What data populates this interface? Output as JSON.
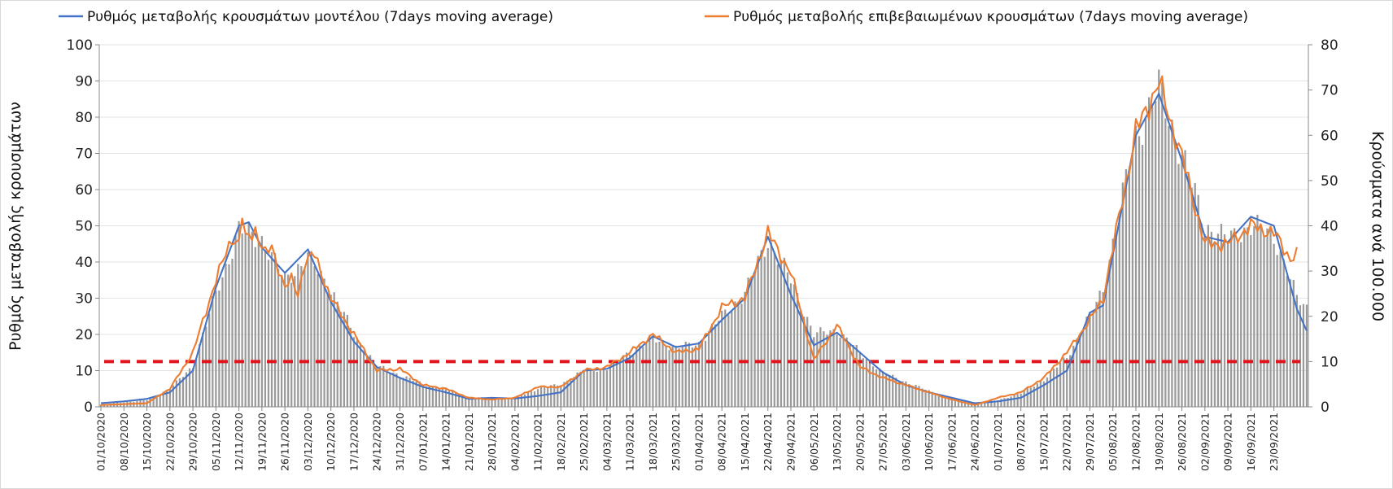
{
  "chart_data": {
    "type": "line",
    "title": "",
    "ylabel_left": "Ρυθμός μεταβολής κρουσμάτων",
    "ylabel_right": "Κρούσματα ανά 100.000",
    "ylim_left": [
      0,
      100
    ],
    "ylim_right": [
      0,
      80
    ],
    "yticks_left": [
      "0",
      "10",
      "20",
      "30",
      "40",
      "50",
      "60",
      "70",
      "80",
      "90",
      "100"
    ],
    "yticks_right": [
      "0",
      "10",
      "20",
      "30",
      "40",
      "50",
      "60",
      "70",
      "80"
    ],
    "grid": true,
    "legend_position": "top",
    "x_labels": [
      "01/10/2020",
      "08/10/2020",
      "15/10/2020",
      "22/10/2020",
      "29/10/2020",
      "05/11/2020",
      "12/11/2020",
      "19/11/2020",
      "26/11/2020",
      "03/12/2020",
      "10/12/2020",
      "17/12/2020",
      "24/12/2020",
      "31/12/2020",
      "07/01/2021",
      "14/01/2021",
      "21/01/2021",
      "28/01/2021",
      "04/02/2021",
      "11/02/2021",
      "18/02/2021",
      "25/02/2021",
      "04/03/2021",
      "11/03/2021",
      "18/03/2021",
      "25/03/2021",
      "01/04/2021",
      "08/04/2021",
      "15/04/2021",
      "22/04/2021",
      "29/04/2021",
      "06/05/2021",
      "13/05/2021",
      "20/05/2021",
      "27/05/2021",
      "03/06/2021",
      "10/06/2021",
      "17/06/2021",
      "24/06/2021",
      "01/07/2021",
      "08/07/2021",
      "15/07/2021",
      "22/07/2021",
      "29/07/2021",
      "05/08/2021",
      "12/08/2021",
      "19/08/2021",
      "26/08/2021",
      "02/09/2021",
      "09/09/2021",
      "16/09/2021",
      "23/09/2021"
    ],
    "threshold": {
      "axis": "right",
      "value": 10,
      "color": "#e0161c",
      "style": "dashed"
    },
    "series": [
      {
        "name": "Ρυθμός μεταβολής κρουσμάτων μοντέλου (7days moving average)",
        "axis": "left",
        "kind": "line",
        "color": "#4472c4",
        "knots": [
          [
            0,
            1
          ],
          [
            7,
            1.5
          ],
          [
            14,
            2.2
          ],
          [
            21,
            4
          ],
          [
            28,
            10
          ],
          [
            35,
            33
          ],
          [
            42,
            50
          ],
          [
            45,
            51
          ],
          [
            49,
            44
          ],
          [
            56,
            37
          ],
          [
            63,
            43.5
          ],
          [
            70,
            29
          ],
          [
            77,
            18
          ],
          [
            84,
            11
          ],
          [
            91,
            8
          ],
          [
            98,
            5.5
          ],
          [
            105,
            4
          ],
          [
            112,
            2.2
          ],
          [
            119,
            2.5
          ],
          [
            126,
            2.3
          ],
          [
            133,
            3
          ],
          [
            140,
            4
          ],
          [
            147,
            10
          ],
          [
            154,
            10.5
          ],
          [
            161,
            13.5
          ],
          [
            168,
            19.5
          ],
          [
            175,
            16.5
          ],
          [
            182,
            17.5
          ],
          [
            189,
            24
          ],
          [
            196,
            30
          ],
          [
            203,
            47
          ],
          [
            210,
            31
          ],
          [
            217,
            17
          ],
          [
            224,
            20.5
          ],
          [
            231,
            15
          ],
          [
            238,
            9.5
          ],
          [
            245,
            6
          ],
          [
            252,
            4
          ],
          [
            259,
            2.5
          ],
          [
            266,
            1
          ],
          [
            273,
            1.5
          ],
          [
            280,
            2.5
          ],
          [
            287,
            6
          ],
          [
            294,
            10
          ],
          [
            301,
            26
          ],
          [
            305,
            28
          ],
          [
            315,
            75
          ],
          [
            322,
            86.5
          ],
          [
            329,
            68
          ],
          [
            336,
            47
          ],
          [
            343,
            45.5
          ],
          [
            350,
            52.5
          ],
          [
            357,
            50
          ],
          [
            364,
            27
          ],
          [
            367,
            21
          ]
        ]
      },
      {
        "name": "Ρυθμός μεταβολής επιβεβαιωμένων κρουσμάτων (7days moving average)",
        "axis": "left",
        "kind": "line",
        "color": "#ed7d31",
        "knots": [
          [
            0,
            0.5
          ],
          [
            14,
            1
          ],
          [
            21,
            5
          ],
          [
            28,
            15
          ],
          [
            35,
            35
          ],
          [
            40,
            47
          ],
          [
            42,
            45
          ],
          [
            43,
            53
          ],
          [
            44,
            46
          ],
          [
            47,
            49
          ],
          [
            50,
            42
          ],
          [
            52,
            44
          ],
          [
            56,
            33
          ],
          [
            58,
            35
          ],
          [
            60,
            31
          ],
          [
            62,
            40
          ],
          [
            65,
            42
          ],
          [
            70,
            30
          ],
          [
            77,
            20
          ],
          [
            84,
            10
          ],
          [
            91,
            10.5
          ],
          [
            98,
            6
          ],
          [
            105,
            5
          ],
          [
            112,
            2.5
          ],
          [
            119,
            2
          ],
          [
            126,
            2.5
          ],
          [
            133,
            5.5
          ],
          [
            140,
            5.5
          ],
          [
            147,
            10
          ],
          [
            154,
            11
          ],
          [
            161,
            15
          ],
          [
            168,
            20
          ],
          [
            175,
            15
          ],
          [
            182,
            16
          ],
          [
            189,
            27.5
          ],
          [
            196,
            30
          ],
          [
            203,
            48
          ],
          [
            210,
            37
          ],
          [
            217,
            13
          ],
          [
            224,
            22.5
          ],
          [
            231,
            11
          ],
          [
            238,
            8
          ],
          [
            245,
            6
          ],
          [
            252,
            4
          ],
          [
            259,
            2
          ],
          [
            266,
            0.5
          ],
          [
            273,
            2.5
          ],
          [
            280,
            4
          ],
          [
            287,
            8
          ],
          [
            294,
            15
          ],
          [
            301,
            24
          ],
          [
            305,
            30
          ],
          [
            315,
            76
          ],
          [
            322,
            89.5
          ],
          [
            329,
            69
          ],
          [
            336,
            45
          ],
          [
            343,
            45
          ],
          [
            350,
            50
          ],
          [
            357,
            48
          ],
          [
            362,
            41
          ],
          [
            364,
            42
          ]
        ]
      },
      {
        "name": "Κρούσματα ανά 100.000",
        "axis": "right",
        "kind": "bar",
        "color": "#9a9a9a",
        "knots": [
          [
            0,
            0.5
          ],
          [
            7,
            1
          ],
          [
            14,
            1.5
          ],
          [
            21,
            4
          ],
          [
            28,
            9
          ],
          [
            35,
            25
          ],
          [
            42,
            39
          ],
          [
            49,
            37
          ],
          [
            56,
            28
          ],
          [
            63,
            33
          ],
          [
            70,
            26
          ],
          [
            77,
            16
          ],
          [
            84,
            9
          ],
          [
            91,
            7
          ],
          [
            98,
            5
          ],
          [
            105,
            4
          ],
          [
            112,
            2
          ],
          [
            119,
            2
          ],
          [
            126,
            2
          ],
          [
            133,
            4
          ],
          [
            140,
            5
          ],
          [
            147,
            8
          ],
          [
            154,
            8.5
          ],
          [
            161,
            12
          ],
          [
            168,
            15
          ],
          [
            175,
            13
          ],
          [
            182,
            14
          ],
          [
            189,
            20
          ],
          [
            196,
            25
          ],
          [
            203,
            37
          ],
          [
            210,
            28
          ],
          [
            217,
            16
          ],
          [
            224,
            17
          ],
          [
            231,
            12
          ],
          [
            238,
            7.5
          ],
          [
            245,
            5.5
          ],
          [
            252,
            3.5
          ],
          [
            259,
            2
          ],
          [
            266,
            0.8
          ],
          [
            273,
            1.5
          ],
          [
            280,
            3
          ],
          [
            287,
            6
          ],
          [
            294,
            11
          ],
          [
            301,
            20
          ],
          [
            305,
            26
          ],
          [
            315,
            60
          ],
          [
            322,
            70
          ],
          [
            329,
            56
          ],
          [
            336,
            40
          ],
          [
            343,
            37
          ],
          [
            350,
            40
          ],
          [
            357,
            38
          ],
          [
            364,
            24
          ],
          [
            367,
            22
          ]
        ]
      }
    ]
  }
}
